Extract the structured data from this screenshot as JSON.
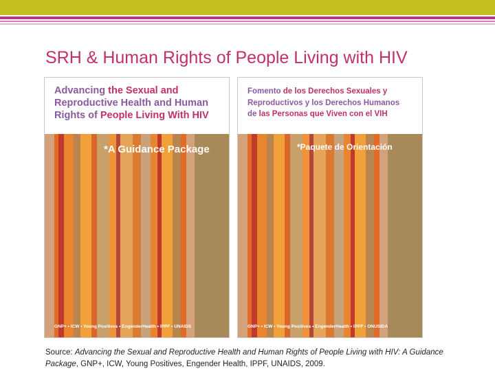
{
  "slide": {
    "title": "SRH & Human Rights of People Living with HIV"
  },
  "cover_en": {
    "title_line1_a": "Advancing",
    "title_line1_b": " the Sexual and",
    "title_line2": "Reproductive Health and Human",
    "title_line3_a": "Rights of ",
    "title_line3_b": "People Living With HIV",
    "subtitle": "*A Guidance Package",
    "partners": "GNP+ • ICW • Young Positives • EngenderHealth • IPPF • UNAIDS"
  },
  "cover_es": {
    "title_line1_a": "Fomento",
    "title_line1_b": " de los Derechos Sexuales y",
    "title_line2": "Reproductivos y los Derechos Humanos",
    "title_line3_a": "de ",
    "title_line3_b": "las Personas que Viven con el VIH",
    "subtitle": "*Paquete de Orientación",
    "partners": "GNP+ • ICW • Young Positives • EngenderHealth • IPPF • ONUSIDA"
  },
  "source": {
    "label": "Source: ",
    "italic_part": "Advancing the Sexual and Reproductive Health and Human Rights of People Living with HIV: A Guidance Package",
    "rest": ", GNP+, ICW, Young Positives, Engender Health, IPPF, UNAIDS, 2009."
  },
  "colors": {
    "accent_bar": "#c4c020",
    "magenta": "#c0306a",
    "purple": "#8a5aa0"
  }
}
